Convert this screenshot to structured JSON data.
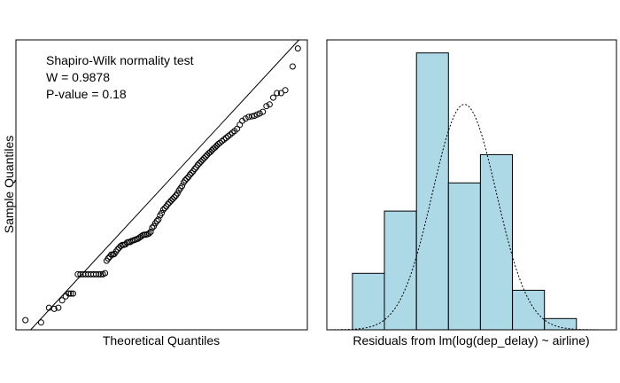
{
  "chart_data": [
    {
      "type": "scatter",
      "xlabel": "Theoretical Quantiles",
      "ylabel": "Sample Quantiles",
      "annotation": [
        "Shapiro-Wilk normality test",
        "W = 0.9878",
        "P-value = 0.18"
      ],
      "reference_line": true,
      "points": [
        [
          -2.6,
          -2.33
        ],
        [
          -2.3,
          -2.37
        ],
        [
          -2.15,
          -2.11
        ],
        [
          -2.05,
          -2.13
        ],
        [
          -1.97,
          -2.11
        ],
        [
          -1.9,
          -1.98
        ],
        [
          -1.83,
          -1.91
        ],
        [
          -1.77,
          -1.86
        ],
        [
          -1.73,
          -1.86
        ],
        [
          -1.69,
          -1.86
        ],
        [
          -1.6,
          -1.52
        ],
        [
          -1.55,
          -1.52
        ],
        [
          -1.5,
          -1.52
        ],
        [
          -1.45,
          -1.52
        ],
        [
          -1.4,
          -1.52
        ],
        [
          -1.35,
          -1.52
        ],
        [
          -1.3,
          -1.52
        ],
        [
          -1.25,
          -1.52
        ],
        [
          -1.2,
          -1.52
        ],
        [
          -1.16,
          -1.52
        ],
        [
          -1.12,
          -1.52
        ],
        [
          -1.08,
          -1.5
        ],
        [
          -1.05,
          -1.28
        ],
        [
          -1.02,
          -1.24
        ],
        [
          -0.99,
          -1.21
        ],
        [
          -0.96,
          -1.17
        ],
        [
          -0.93,
          -1.17
        ],
        [
          -0.9,
          -1.16
        ],
        [
          -0.87,
          -1.12
        ],
        [
          -0.84,
          -1.08
        ],
        [
          -0.81,
          -1.05
        ],
        [
          -0.78,
          -1.02
        ],
        [
          -0.75,
          -1.0
        ],
        [
          -0.72,
          -1.0
        ],
        [
          -0.69,
          -0.99
        ],
        [
          -0.66,
          -0.96
        ],
        [
          -0.63,
          -0.95
        ],
        [
          -0.6,
          -0.95
        ],
        [
          -0.57,
          -0.93
        ],
        [
          -0.54,
          -0.92
        ],
        [
          -0.51,
          -0.91
        ],
        [
          -0.48,
          -0.9
        ],
        [
          -0.45,
          -0.89
        ],
        [
          -0.42,
          -0.87
        ],
        [
          -0.39,
          -0.85
        ],
        [
          -0.36,
          -0.83
        ],
        [
          -0.33,
          -0.82
        ],
        [
          -0.3,
          -0.82
        ],
        [
          -0.27,
          -0.81
        ],
        [
          -0.24,
          -0.8
        ],
        [
          -0.21,
          -0.77
        ],
        [
          -0.18,
          -0.7
        ],
        [
          -0.15,
          -0.67
        ],
        [
          -0.12,
          -0.62
        ],
        [
          -0.09,
          -0.58
        ],
        [
          -0.06,
          -0.55
        ],
        [
          -0.03,
          -0.48
        ],
        [
          0.0,
          -0.44
        ],
        [
          0.03,
          -0.38
        ],
        [
          0.06,
          -0.35
        ],
        [
          0.09,
          -0.32
        ],
        [
          0.12,
          -0.28
        ],
        [
          0.15,
          -0.25
        ],
        [
          0.18,
          -0.22
        ],
        [
          0.21,
          -0.19
        ],
        [
          0.24,
          -0.16
        ],
        [
          0.27,
          -0.13
        ],
        [
          0.3,
          -0.09
        ],
        [
          0.33,
          -0.04
        ],
        [
          0.36,
          0.0
        ],
        [
          0.39,
          0.04
        ],
        [
          0.42,
          0.1
        ],
        [
          0.45,
          0.14
        ],
        [
          0.48,
          0.17
        ],
        [
          0.51,
          0.2
        ],
        [
          0.54,
          0.24
        ],
        [
          0.57,
          0.27
        ],
        [
          0.6,
          0.3
        ],
        [
          0.63,
          0.34
        ],
        [
          0.66,
          0.37
        ],
        [
          0.69,
          0.41
        ],
        [
          0.72,
          0.44
        ],
        [
          0.75,
          0.47
        ],
        [
          0.78,
          0.5
        ],
        [
          0.81,
          0.53
        ],
        [
          0.84,
          0.56
        ],
        [
          0.87,
          0.59
        ],
        [
          0.9,
          0.62
        ],
        [
          0.93,
          0.64
        ],
        [
          0.96,
          0.67
        ],
        [
          0.99,
          0.7
        ],
        [
          1.02,
          0.72
        ],
        [
          1.05,
          0.75
        ],
        [
          1.08,
          0.78
        ],
        [
          1.11,
          0.8
        ],
        [
          1.15,
          0.83
        ],
        [
          1.19,
          0.86
        ],
        [
          1.23,
          0.89
        ],
        [
          1.27,
          0.92
        ],
        [
          1.31,
          0.95
        ],
        [
          1.35,
          0.98
        ],
        [
          1.39,
          1.01
        ],
        [
          1.44,
          1.05
        ],
        [
          1.49,
          1.12
        ],
        [
          1.54,
          1.19
        ],
        [
          1.6,
          1.23
        ],
        [
          1.66,
          1.26
        ],
        [
          1.72,
          1.27
        ],
        [
          1.77,
          1.28
        ],
        [
          1.82,
          1.3
        ],
        [
          1.87,
          1.32
        ],
        [
          1.93,
          1.35
        ],
        [
          2.0,
          1.45
        ],
        [
          2.06,
          1.48
        ],
        [
          2.13,
          1.6
        ],
        [
          2.2,
          1.68
        ],
        [
          2.28,
          1.68
        ],
        [
          2.36,
          1.73
        ],
        [
          2.5,
          2.15
        ],
        [
          2.6,
          2.47
        ]
      ]
    },
    {
      "type": "bar",
      "xlabel": "Residuals from lm(log(dep_delay) ~ airline)",
      "bin_edges": [
        -3,
        -2,
        -1,
        0,
        1,
        2,
        3,
        4,
        5
      ],
      "values": [
        0.1,
        0.21,
        0.49,
        0.26,
        0.31,
        0.07,
        0.02,
        0.0
      ],
      "ylim": [
        0,
        0.5
      ],
      "density_curve": {
        "mean": 0.5,
        "sd": 1.0
      }
    }
  ]
}
